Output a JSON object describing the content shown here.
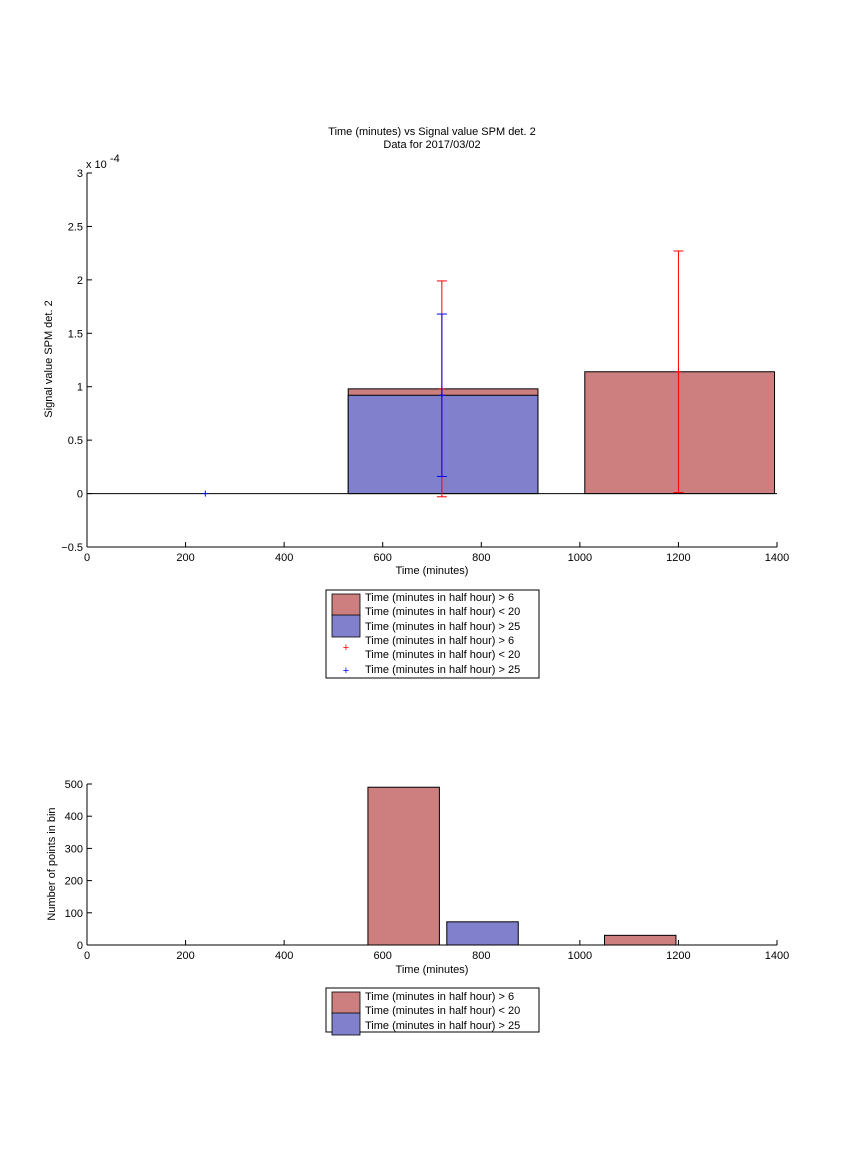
{
  "chart_data": [
    {
      "type": "bar",
      "title": "Time (minutes) vs Signal value SPM det. 2",
      "subtitle": "Data for 2017/03/02",
      "xlabel": "Time (minutes)",
      "ylabel": "Signal value SPM det. 2",
      "exponent_label": "x 10",
      "exponent_power": "-4",
      "xlim": [
        0,
        1400
      ],
      "ylim": [
        -0.5,
        3
      ],
      "xticks": [
        "0",
        "200",
        "400",
        "600",
        "800",
        "1000",
        "1200",
        "1400"
      ],
      "yticks": [
        "−0.5",
        "0",
        "0.5",
        "1",
        "1.5",
        "2",
        "2.5",
        "3"
      ],
      "grid": false,
      "legend": {
        "placement": "below",
        "entries": [
          "Time (minutes in half hour) > 6",
          "Time (minutes in half hour) < 20",
          "Time (minutes in half hour) > 25",
          "Time (minutes in half hour) > 6",
          "Time (minutes in half hour) < 20",
          "Time (minutes in half hour) > 25"
        ]
      },
      "bars": [
        {
          "series": "red",
          "x_start": 530,
          "x_end": 915,
          "value": 0.98,
          "color": "#cd7f7f"
        },
        {
          "series": "blue",
          "x_start": 530,
          "x_end": 915,
          "value": 0.92,
          "color": "#8080cd"
        },
        {
          "series": "red",
          "x_start": 1010,
          "x_end": 1395,
          "value": 1.14,
          "color": "#cd7f7f"
        }
      ],
      "errorbars": [
        {
          "series": "red",
          "x": 720,
          "y": 0.98,
          "low": -0.03,
          "high": 1.99,
          "color": "#ff0000"
        },
        {
          "series": "blue",
          "x": 720,
          "y": 0.92,
          "low": 0.16,
          "high": 1.68,
          "color": "#0000ff"
        },
        {
          "series": "red",
          "x": 1200,
          "y": 1.14,
          "low": 0.01,
          "high": 2.27,
          "color": "#ff0000"
        },
        {
          "series": "blue",
          "x": 240,
          "y": 0,
          "low": 0,
          "high": 0,
          "color": "#0000ff"
        }
      ]
    },
    {
      "type": "bar",
      "xlabel": "Time (minutes)",
      "ylabel": "Number of points in bin",
      "xlim": [
        0,
        1400
      ],
      "ylim": [
        0,
        500
      ],
      "xticks": [
        "0",
        "200",
        "400",
        "600",
        "800",
        "1000",
        "1200",
        "1400"
      ],
      "yticks": [
        "0",
        "100",
        "200",
        "300",
        "400",
        "500"
      ],
      "grid": false,
      "legend": {
        "placement": "below",
        "entries": [
          "Time (minutes in half hour) > 6",
          "Time (minutes in half hour) < 20",
          "Time (minutes in half hour) > 25"
        ]
      },
      "bars": [
        {
          "series": "red",
          "x_start": 570,
          "x_end": 715,
          "value": 490,
          "color": "#cd7f7f"
        },
        {
          "series": "blue",
          "x_start": 730,
          "x_end": 875,
          "value": 72,
          "color": "#8080cd"
        },
        {
          "series": "red",
          "x_start": 1050,
          "x_end": 1195,
          "value": 30,
          "color": "#cd7f7f"
        }
      ]
    }
  ]
}
